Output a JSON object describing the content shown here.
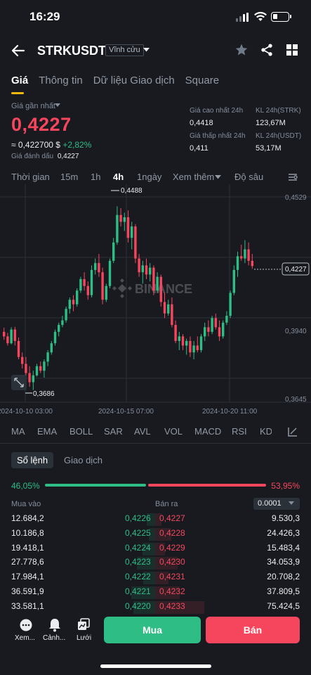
{
  "status": {
    "time": "16:29"
  },
  "header": {
    "title": "STRKUSDT",
    "badge": "Vĩnh cửu"
  },
  "tabs": [
    {
      "label": "Giá"
    },
    {
      "label": "Thông tin"
    },
    {
      "label": "Dữ liệu Giao dịch"
    },
    {
      "label": "Square"
    }
  ],
  "price": {
    "last_label": "Giá gần nhất",
    "last": "0,4227",
    "usd": "≈ 0,422700 $",
    "change": "+2,82%",
    "mark_label": "Giá đánh dấu",
    "mark": "0,4227"
  },
  "stats": {
    "high_label": "Giá cao nhất 24h",
    "high": "0,4418",
    "vol_strk_label": "KL 24h(STRK)",
    "vol_strk": "123,67M",
    "low_label": "Giá thấp nhất 24h",
    "low": "0,411",
    "vol_usdt_label": "KL 24h(USDT)",
    "vol_usdt": "53,17M"
  },
  "timebar": {
    "time": "Thời gian",
    "m15": "15m",
    "h1": "1h",
    "h4": "4h",
    "d1": "1ngày",
    "more": "Xem thêm",
    "depth": "Độ sâu"
  },
  "chart_data": {
    "type": "candlestick",
    "y_ticks": [
      "0,4529",
      "0,3940",
      "0,3645"
    ],
    "x_ticks": [
      "2024-10-10 03:00",
      "2024-10-15 07:00",
      "2024-10-20 11:00"
    ],
    "ylim": [
      0.3645,
      0.4529
    ],
    "high_label": "0,4488",
    "low_label": "0,3686",
    "current_label": "0,4227",
    "current": 0.4227,
    "watermark": "BINANCE",
    "up_color": "#2ebd85",
    "down_color": "#f6465d",
    "candles": [
      [
        0.394,
        0.3958,
        0.3905,
        0.392
      ],
      [
        0.392,
        0.3935,
        0.388,
        0.389
      ],
      [
        0.389,
        0.396,
        0.3885,
        0.395
      ],
      [
        0.395,
        0.3962,
        0.388,
        0.39
      ],
      [
        0.39,
        0.3915,
        0.382,
        0.383
      ],
      [
        0.383,
        0.385,
        0.378,
        0.38
      ],
      [
        0.38,
        0.383,
        0.374,
        0.376
      ],
      [
        0.376,
        0.379,
        0.37,
        0.372
      ],
      [
        0.372,
        0.377,
        0.3686,
        0.375
      ],
      [
        0.375,
        0.38,
        0.3745,
        0.379
      ],
      [
        0.379,
        0.381,
        0.376,
        0.377
      ],
      [
        0.377,
        0.382,
        0.374,
        0.381
      ],
      [
        0.381,
        0.386,
        0.379,
        0.385
      ],
      [
        0.385,
        0.39,
        0.384,
        0.389
      ],
      [
        0.389,
        0.395,
        0.388,
        0.394
      ],
      [
        0.394,
        0.398,
        0.392,
        0.397
      ],
      [
        0.397,
        0.401,
        0.396,
        0.399
      ],
      [
        0.399,
        0.405,
        0.398,
        0.404
      ],
      [
        0.404,
        0.409,
        0.402,
        0.408
      ],
      [
        0.408,
        0.41,
        0.403,
        0.406
      ],
      [
        0.406,
        0.413,
        0.405,
        0.412
      ],
      [
        0.412,
        0.418,
        0.411,
        0.417
      ],
      [
        0.417,
        0.42,
        0.412,
        0.414
      ],
      [
        0.414,
        0.416,
        0.408,
        0.41
      ],
      [
        0.41,
        0.423,
        0.409,
        0.421
      ],
      [
        0.421,
        0.426,
        0.419,
        0.424
      ],
      [
        0.424,
        0.428,
        0.418,
        0.42
      ],
      [
        0.42,
        0.422,
        0.406,
        0.408
      ],
      [
        0.408,
        0.415,
        0.407,
        0.414
      ],
      [
        0.414,
        0.426,
        0.413,
        0.425
      ],
      [
        0.425,
        0.435,
        0.424,
        0.433
      ],
      [
        0.433,
        0.4488,
        0.432,
        0.445
      ],
      [
        0.445,
        0.448,
        0.44,
        0.442
      ],
      [
        0.442,
        0.446,
        0.438,
        0.444
      ],
      [
        0.444,
        0.447,
        0.433,
        0.435
      ],
      [
        0.435,
        0.442,
        0.43,
        0.44
      ],
      [
        0.44,
        0.441,
        0.424,
        0.426
      ],
      [
        0.426,
        0.428,
        0.418,
        0.42
      ],
      [
        0.42,
        0.425,
        0.415,
        0.423
      ],
      [
        0.423,
        0.426,
        0.417,
        0.419
      ],
      [
        0.419,
        0.424,
        0.416,
        0.422
      ],
      [
        0.422,
        0.423,
        0.41,
        0.412
      ],
      [
        0.412,
        0.42,
        0.411,
        0.418
      ],
      [
        0.418,
        0.419,
        0.405,
        0.407
      ],
      [
        0.407,
        0.411,
        0.4,
        0.402
      ],
      [
        0.402,
        0.408,
        0.401,
        0.406
      ],
      [
        0.406,
        0.409,
        0.396,
        0.397
      ],
      [
        0.397,
        0.399,
        0.389,
        0.39
      ],
      [
        0.39,
        0.394,
        0.386,
        0.392
      ],
      [
        0.392,
        0.393,
        0.386,
        0.388
      ],
      [
        0.388,
        0.391,
        0.384,
        0.39
      ],
      [
        0.39,
        0.392,
        0.383,
        0.385
      ],
      [
        0.385,
        0.39,
        0.382,
        0.388
      ],
      [
        0.388,
        0.392,
        0.385,
        0.386
      ],
      [
        0.386,
        0.393,
        0.385,
        0.392
      ],
      [
        0.392,
        0.398,
        0.39,
        0.396
      ],
      [
        0.396,
        0.399,
        0.392,
        0.394
      ],
      [
        0.394,
        0.401,
        0.393,
        0.4
      ],
      [
        0.4,
        0.402,
        0.395,
        0.396
      ],
      [
        0.396,
        0.399,
        0.39,
        0.392
      ],
      [
        0.392,
        0.399,
        0.391,
        0.398
      ],
      [
        0.398,
        0.403,
        0.397,
        0.401
      ],
      [
        0.401,
        0.412,
        0.4,
        0.411
      ],
      [
        0.411,
        0.423,
        0.41,
        0.421
      ],
      [
        0.421,
        0.429,
        0.418,
        0.427
      ],
      [
        0.427,
        0.432,
        0.425,
        0.426
      ],
      [
        0.426,
        0.434,
        0.424,
        0.43
      ],
      [
        0.43,
        0.433,
        0.423,
        0.425
      ],
      [
        0.425,
        0.428,
        0.4215,
        0.4227
      ]
    ]
  },
  "indicators": [
    "MA",
    "EMA",
    "BOLL",
    "SAR",
    "AVL",
    "VOL",
    "MACD",
    "RSI",
    "KDJ"
  ],
  "orderbook": {
    "tab_book": "Sổ lệnh",
    "tab_trades": "Giao dịch",
    "bid_pct": "46,05%",
    "ask_pct": "53,95%",
    "buy_label": "Mua vào",
    "sell_label": "Bán ra",
    "tick": "0.0001",
    "rows": [
      {
        "bid_qty": "12.684,2",
        "bid": "0,4226",
        "ask": "0,4227",
        "ask_qty": "9.530,3"
      },
      {
        "bid_qty": "10.186,8",
        "bid": "0,4225",
        "ask": "0,4228",
        "ask_qty": "24.426,3"
      },
      {
        "bid_qty": "19.418,1",
        "bid": "0,4224",
        "ask": "0,4229",
        "ask_qty": "15.483,4"
      },
      {
        "bid_qty": "27.778,6",
        "bid": "0,4223",
        "ask": "0,4230",
        "ask_qty": "34.053,9"
      },
      {
        "bid_qty": "17.984,1",
        "bid": "0,4222",
        "ask": "0,4231",
        "ask_qty": "20.708,2"
      },
      {
        "bid_qty": "36.591,9",
        "bid": "0,4221",
        "ask": "0,4232",
        "ask_qty": "37.809,5"
      },
      {
        "bid_qty": "33.581,1",
        "bid": "0,4220",
        "ask": "0,4233",
        "ask_qty": "75.424,5"
      }
    ]
  },
  "bottom": {
    "more": "Xem...",
    "alert": "Cảnh...",
    "grid": "Lưới",
    "buy": "Mua",
    "sell": "Bán"
  }
}
